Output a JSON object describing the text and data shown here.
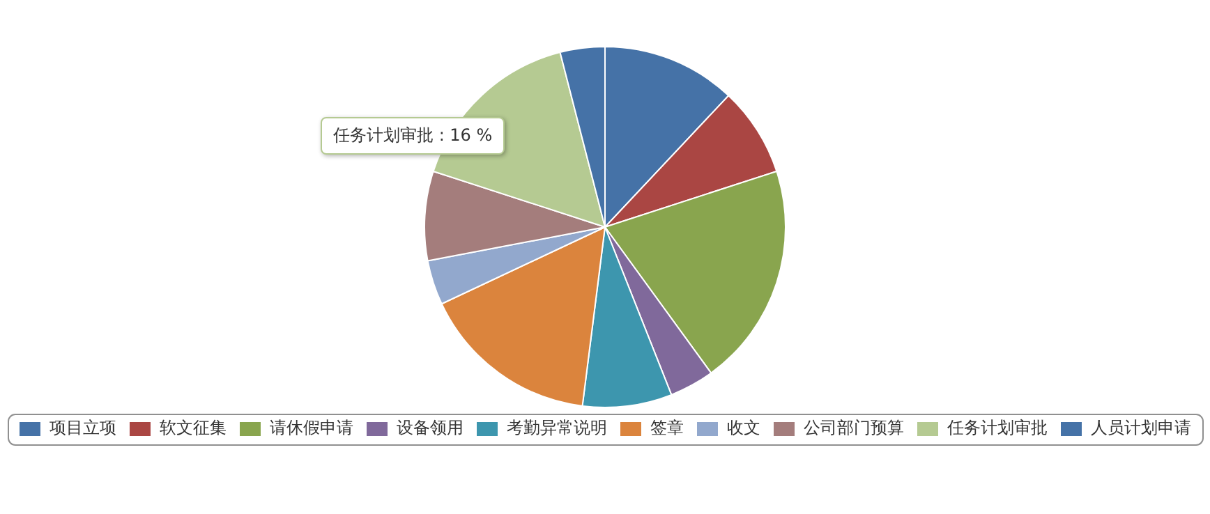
{
  "chart_data": {
    "type": "pie",
    "categories": [
      "项目立项",
      "软文征集",
      "请休假申请",
      "设备领用",
      "考勤异常说明",
      "签章",
      "收文",
      "公司部门预算",
      "任务计划审批",
      "人员计划申请"
    ],
    "values": [
      12,
      8,
      20,
      4,
      8,
      16,
      4,
      8,
      16,
      4
    ],
    "colors": [
      "#4572a7",
      "#aa4643",
      "#89a54e",
      "#80699b",
      "#3d96ae",
      "#db843d",
      "#92a8cd",
      "#a47d7c",
      "#b5ca92",
      "#4572a7"
    ],
    "legend": "bottom",
    "annotations": [
      "任务计划审批 : 16 %"
    ]
  }
}
